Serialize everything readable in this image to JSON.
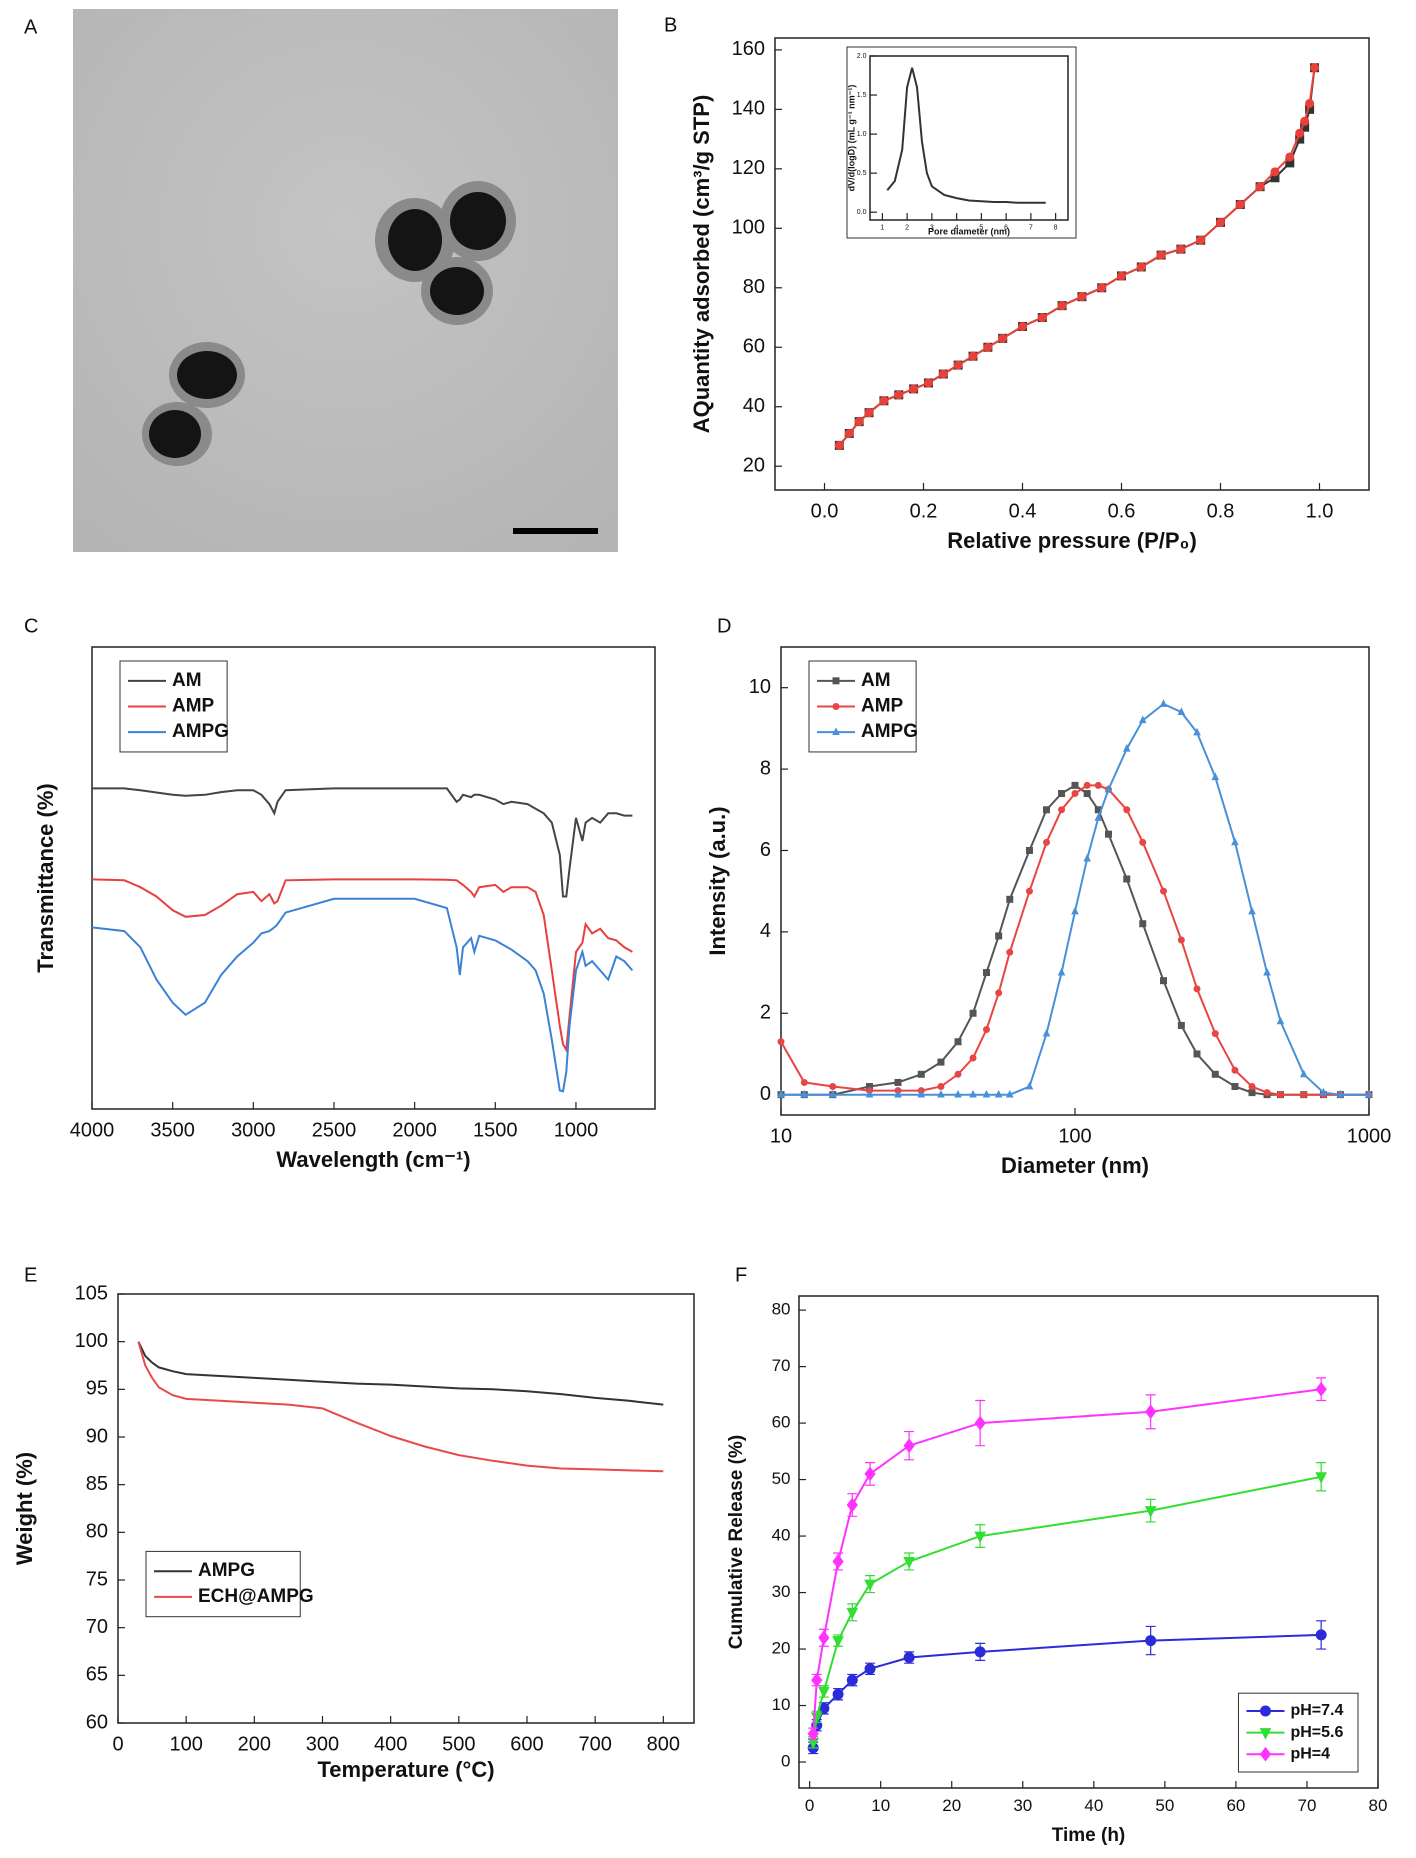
{
  "image_panel": {
    "panel": "A"
  },
  "chart_data": [
    {
      "type": "line",
      "panel": "B",
      "xlabel": "Relative pressure (P/P₀)",
      "ylabel": "AQuantity adsorbed (cm³/g STP)",
      "x": [
        0.03,
        0.05,
        0.07,
        0.09,
        0.12,
        0.15,
        0.18,
        0.21,
        0.24,
        0.27,
        0.3,
        0.33,
        0.36,
        0.4,
        0.44,
        0.48,
        0.52,
        0.56,
        0.6,
        0.64,
        0.68,
        0.72,
        0.76,
        0.8,
        0.84,
        0.88,
        0.91,
        0.94,
        0.96,
        0.97,
        0.98,
        0.99
      ],
      "series": [
        {
          "color": "#333333",
          "marker": "square",
          "values": [
            27,
            31,
            35,
            38,
            42,
            44,
            46,
            48,
            51,
            54,
            57,
            60,
            63,
            67,
            70,
            74,
            77,
            80,
            84,
            87,
            91,
            93,
            96,
            102,
            108,
            114,
            117,
            122,
            130,
            134,
            140,
            154
          ]
        },
        {
          "color": "#e8413a",
          "marker": "circle",
          "values": [
            27,
            31,
            35,
            38,
            42,
            44,
            46,
            48,
            51,
            54,
            57,
            60,
            63,
            67,
            70,
            74,
            77,
            80,
            84,
            87,
            91,
            93,
            96,
            102,
            108,
            114,
            119,
            124,
            132,
            136,
            142,
            154
          ]
        }
      ],
      "xlim": [
        -0.1,
        1.1
      ],
      "ylim": [
        12,
        164
      ],
      "xticks": [
        {
          "value": 0,
          "label": "0.0"
        },
        0.2,
        0.4,
        0.6,
        0.8,
        {
          "value": 1,
          "label": "1.0"
        }
      ],
      "yticks": [
        20,
        40,
        60,
        80,
        100,
        120,
        140,
        160
      ]
    },
    {
      "type": "line",
      "xlabel": "Pore diameter (nm)",
      "ylabel": "dV/d(logD) (mL g⁻¹ nm⁻¹)",
      "x": [
        1.2,
        1.5,
        1.8,
        2.0,
        2.2,
        2.4,
        2.6,
        2.8,
        3.0,
        3.5,
        4,
        4.5,
        5,
        5.5,
        6,
        6.5,
        7,
        7.6
      ],
      "series": [
        {
          "color": "#333333",
          "values": [
            0.28,
            0.4,
            0.8,
            1.6,
            1.85,
            1.6,
            0.9,
            0.5,
            0.33,
            0.22,
            0.18,
            0.15,
            0.14,
            0.13,
            0.13,
            0.12,
            0.12,
            0.12
          ]
        }
      ],
      "xlim": [
        0.5,
        8.5
      ],
      "ylim": [
        -0.1,
        2.0
      ],
      "xticks": [
        1,
        2,
        3,
        4,
        5,
        6,
        7,
        8
      ],
      "yticks": [
        {
          "value": 0,
          "label": "0.0"
        },
        0.5,
        {
          "value": 1,
          "label": "1.0"
        },
        1.5,
        {
          "value": 2,
          "label": "2.0"
        }
      ]
    },
    {
      "type": "line",
      "panel": "C",
      "xlabel": "Wavelength (cm⁻¹)",
      "ylabel": "Transmittance (%)",
      "legend": "upper left",
      "x": [
        4000,
        3800,
        3700,
        3600,
        3500,
        3420,
        3300,
        3200,
        3100,
        3000,
        2950,
        2900,
        2870,
        2850,
        2800,
        2500,
        2000,
        1800,
        1740,
        1720,
        1700,
        1650,
        1630,
        1600,
        1500,
        1450,
        1400,
        1300,
        1250,
        1200,
        1150,
        1100,
        1080,
        1060,
        1040,
        1000,
        960,
        940,
        900,
        850,
        800,
        750,
        700,
        650
      ],
      "series": [
        {
          "name": "AM",
          "color": "#444444",
          "values": [
            69.4,
            69.4,
            69,
            68.5,
            68,
            67.8,
            68,
            68.6,
            69,
            69,
            68,
            66,
            64,
            66.5,
            69,
            69.4,
            69.4,
            69.4,
            66.5,
            67,
            68,
            67.5,
            68,
            68,
            67,
            66,
            66.5,
            66,
            65,
            64,
            62,
            55,
            46,
            46,
            52,
            63,
            58,
            62,
            63,
            62,
            64,
            64,
            63.5,
            63.5
          ]
        },
        {
          "name": "AMP",
          "color": "#e84040",
          "values": [
            49.7,
            49.5,
            48,
            46,
            43,
            41.6,
            42,
            44,
            46.5,
            47,
            45,
            46.5,
            44.5,
            45,
            49.5,
            49.7,
            49.7,
            49.6,
            49.5,
            49,
            48.5,
            47,
            46,
            48,
            48.5,
            47,
            48,
            48,
            47,
            42,
            30,
            18,
            14,
            12.8,
            20,
            34,
            36,
            40,
            38,
            39,
            37,
            36.5,
            35,
            34
          ]
        },
        {
          "name": "AMPG",
          "color": "#3b82d6",
          "values": [
            39.3,
            38.5,
            35,
            28,
            23,
            20.4,
            23,
            29,
            33,
            36,
            38,
            38.5,
            39.3,
            40,
            42.5,
            45.5,
            45.5,
            43.5,
            35,
            29,
            35,
            37,
            34,
            37.5,
            36.5,
            35.5,
            34.5,
            32,
            30,
            25,
            15,
            4,
            3.8,
            8,
            18,
            30,
            34,
            31,
            32,
            30,
            28,
            33,
            32,
            30
          ]
        }
      ],
      "xlim": [
        4000,
        510
      ],
      "ylim": [
        0,
        100
      ],
      "xticks": [
        4000,
        3500,
        3000,
        2500,
        2000,
        1500,
        1000
      ]
    },
    {
      "type": "line",
      "panel": "D",
      "xlabel": "Diameter (nm)",
      "ylabel": "Intensity (a.u.)",
      "legend": "upper left",
      "xscale": "log",
      "x": [
        10,
        12,
        15,
        20,
        25,
        30,
        35,
        40,
        45,
        50,
        55,
        60,
        70,
        80,
        90,
        100,
        110,
        120,
        130,
        150,
        170,
        200,
        230,
        260,
        300,
        350,
        400,
        450,
        500,
        600,
        700,
        800,
        1000
      ],
      "series": [
        {
          "name": "AM",
          "color": "#555555",
          "marker": "square",
          "values": [
            0,
            0,
            0,
            0.2,
            0.3,
            0.5,
            0.8,
            1.3,
            2.0,
            3.0,
            3.9,
            4.8,
            6.0,
            7.0,
            7.4,
            7.6,
            7.4,
            7.0,
            6.4,
            5.3,
            4.2,
            2.8,
            1.7,
            1.0,
            0.5,
            0.2,
            0.05,
            0,
            0,
            0,
            0,
            0,
            0
          ]
        },
        {
          "name": "AMP",
          "color": "#e84545",
          "marker": "circle",
          "values": [
            1.3,
            0.3,
            0.2,
            0.1,
            0.1,
            0.1,
            0.2,
            0.5,
            0.9,
            1.6,
            2.5,
            3.5,
            5.0,
            6.2,
            7.0,
            7.4,
            7.6,
            7.6,
            7.5,
            7.0,
            6.2,
            5.0,
            3.8,
            2.6,
            1.5,
            0.6,
            0.2,
            0.05,
            0,
            0,
            0,
            0,
            0
          ]
        },
        {
          "name": "AMPG",
          "color": "#4a90d9",
          "marker": "triangle-up",
          "values": [
            0,
            0,
            0,
            0,
            0,
            0,
            0,
            0,
            0,
            0,
            0,
            0,
            0.2,
            1.5,
            3.0,
            4.5,
            5.8,
            6.8,
            7.5,
            8.5,
            9.2,
            9.6,
            9.4,
            8.9,
            7.8,
            6.2,
            4.5,
            3.0,
            1.8,
            0.5,
            0.05,
            0,
            0
          ]
        }
      ],
      "xlim": [
        10,
        1000
      ],
      "ylim": [
        -0.5,
        11
      ],
      "xticks": [
        10,
        100,
        1000
      ],
      "yticks": [
        0,
        2,
        4,
        6,
        8,
        10
      ]
    },
    {
      "type": "line",
      "panel": "E",
      "xlabel": "Temperature (°C)",
      "ylabel": "Weight (%)",
      "legend": "center left",
      "x": [
        30,
        40,
        50,
        60,
        80,
        100,
        150,
        200,
        250,
        300,
        350,
        400,
        450,
        500,
        550,
        600,
        650,
        700,
        750,
        800
      ],
      "series": [
        {
          "name": "AMPG",
          "color": "#333333",
          "values": [
            100,
            98.5,
            97.8,
            97.3,
            96.9,
            96.6,
            96.4,
            96.2,
            96.0,
            95.8,
            95.6,
            95.5,
            95.3,
            95.1,
            95.0,
            94.8,
            94.5,
            94.1,
            93.8,
            93.4
          ]
        },
        {
          "name": "ECH@AMPG",
          "color": "#e84a4a",
          "values": [
            100,
            97.5,
            96.2,
            95.2,
            94.4,
            94.0,
            93.8,
            93.6,
            93.4,
            93.0,
            91.5,
            90.1,
            89.0,
            88.1,
            87.5,
            87.0,
            86.7,
            86.6,
            86.5,
            86.4
          ]
        }
      ],
      "xlim": [
        0,
        845
      ],
      "ylim": [
        60,
        105
      ],
      "xticks": [
        0,
        100,
        200,
        300,
        400,
        500,
        600,
        700,
        800
      ],
      "yticks": [
        60,
        65,
        70,
        75,
        80,
        85,
        90,
        95,
        100,
        105
      ]
    },
    {
      "type": "line",
      "panel": "F",
      "xlabel": "Time (h)",
      "ylabel": "Cumulative Release (%)",
      "legend": "lower right",
      "x": [
        0.5,
        1,
        2,
        4,
        6,
        8.5,
        14,
        24,
        48,
        72
      ],
      "series": [
        {
          "name": "pH=7.4",
          "color": "#2b2bd9",
          "marker": "circle",
          "values": [
            2.5,
            6.5,
            9.5,
            12,
            14.5,
            16.5,
            18.5,
            19.5,
            21.5,
            22.5
          ],
          "errors": [
            1,
            1,
            1,
            1,
            1,
            1,
            1,
            1.5,
            2.5,
            2.5
          ]
        },
        {
          "name": "pH=5.6",
          "color": "#33dd33",
          "marker": "triangle-down",
          "values": [
            3.5,
            8,
            12.5,
            21.5,
            26.5,
            31.5,
            35.5,
            40,
            44.5,
            50.5
          ],
          "errors": [
            1,
            1,
            1,
            1,
            1.5,
            1.5,
            1.5,
            2,
            2,
            2.5
          ]
        },
        {
          "name": "pH=4",
          "color": "#ff33ff",
          "marker": "diamond",
          "values": [
            5,
            14.5,
            22,
            35.5,
            45.5,
            51,
            56,
            60,
            62,
            66
          ],
          "errors": [
            1,
            1,
            1.5,
            1.5,
            2,
            2,
            2.5,
            4,
            3,
            2
          ]
        }
      ],
      "xlim": [
        -1.5,
        80
      ],
      "ylim": [
        -4.6,
        82.5
      ],
      "xticks": [
        0,
        10,
        20,
        30,
        40,
        50,
        60,
        70,
        80
      ],
      "yticks": [
        0,
        10,
        20,
        30,
        40,
        50,
        60,
        70,
        80
      ]
    }
  ]
}
